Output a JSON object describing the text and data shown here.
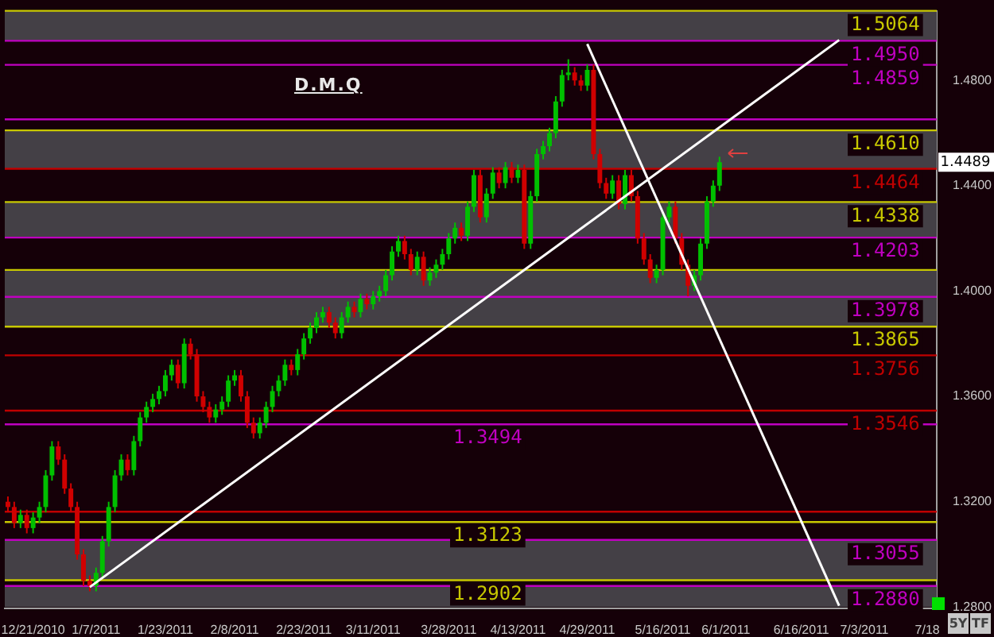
{
  "chart_data": {
    "type": "candlestick",
    "title": "D.M.Q",
    "categories": [
      null,
      null,
      null,
      null,
      "12/21/2010",
      null,
      null,
      null,
      null,
      null,
      null,
      null,
      null,
      null,
      "1/7/2011",
      null,
      null,
      null,
      null,
      null,
      null,
      null,
      null,
      null,
      null,
      "1/23/2011",
      null,
      null,
      null,
      null,
      null,
      null,
      null,
      null,
      null,
      null,
      "2/8/2011",
      null,
      null,
      null,
      null,
      null,
      null,
      null,
      null,
      null,
      null,
      "2/23/2011",
      null,
      null,
      null,
      null,
      null,
      null,
      null,
      null,
      null,
      null,
      "3/11/2011",
      null,
      null,
      null,
      null,
      null,
      null,
      null,
      null,
      null,
      null,
      null,
      "3/28/2011",
      null,
      null,
      null,
      null,
      null,
      null,
      null,
      null,
      null,
      null,
      "4/13/2011",
      null,
      null,
      null,
      null,
      null,
      null,
      null,
      null,
      null,
      null,
      "4/29/2011",
      null,
      null,
      null,
      null,
      null,
      null,
      null,
      null,
      null,
      null,
      null,
      "5/16/2011",
      null,
      null,
      null,
      null,
      null,
      null,
      null,
      null,
      null,
      "6/1/2011",
      null,
      null,
      null,
      null,
      null,
      null,
      null,
      null,
      null,
      null,
      null,
      "6/16/2011",
      null,
      null,
      null,
      null,
      null,
      null,
      null,
      null,
      null,
      "7/3/2011",
      null,
      null,
      null,
      null,
      null,
      null,
      null,
      null,
      null,
      "7/18",
      null
    ],
    "ohlc": [
      [
        1.32,
        1.322,
        1.316,
        1.318
      ],
      [
        1.318,
        1.32,
        1.31,
        1.312
      ],
      [
        1.312,
        1.317,
        1.31,
        1.315
      ],
      [
        1.315,
        1.317,
        1.308,
        1.31
      ],
      [
        1.31,
        1.316,
        1.308,
        1.314
      ],
      [
        1.314,
        1.32,
        1.312,
        1.318
      ],
      [
        1.318,
        1.332,
        1.316,
        1.33
      ],
      [
        1.33,
        1.343,
        1.328,
        1.341
      ],
      [
        1.341,
        1.343,
        1.334,
        1.336
      ],
      [
        1.336,
        1.338,
        1.323,
        1.325
      ],
      [
        1.325,
        1.327,
        1.316,
        1.318
      ],
      [
        1.318,
        1.32,
        1.298,
        1.3
      ],
      [
        1.3,
        1.302,
        1.288,
        1.29
      ],
      [
        1.29,
        1.292,
        1.286,
        1.288
      ],
      [
        1.288,
        1.295,
        1.286,
        1.293
      ],
      [
        1.293,
        1.307,
        1.291,
        1.305
      ],
      [
        1.305,
        1.32,
        1.303,
        1.318
      ],
      [
        1.318,
        1.332,
        1.316,
        1.33
      ],
      [
        1.33,
        1.338,
        1.328,
        1.336
      ],
      [
        1.336,
        1.338,
        1.33,
        1.332
      ],
      [
        1.332,
        1.345,
        1.33,
        1.343
      ],
      [
        1.343,
        1.354,
        1.341,
        1.352
      ],
      [
        1.352,
        1.358,
        1.35,
        1.356
      ],
      [
        1.356,
        1.361,
        1.354,
        1.359
      ],
      [
        1.359,
        1.364,
        1.357,
        1.362
      ],
      [
        1.362,
        1.37,
        1.36,
        1.368
      ],
      [
        1.368,
        1.374,
        1.366,
        1.372
      ],
      [
        1.372,
        1.374,
        1.363,
        1.365
      ],
      [
        1.365,
        1.382,
        1.363,
        1.38
      ],
      [
        1.38,
        1.382,
        1.374,
        1.376
      ],
      [
        1.376,
        1.378,
        1.358,
        1.36
      ],
      [
        1.36,
        1.362,
        1.354,
        1.356
      ],
      [
        1.356,
        1.358,
        1.35,
        1.352
      ],
      [
        1.352,
        1.357,
        1.35,
        1.355
      ],
      [
        1.355,
        1.36,
        1.353,
        1.358
      ],
      [
        1.358,
        1.368,
        1.356,
        1.366
      ],
      [
        1.366,
        1.37,
        1.364,
        1.368
      ],
      [
        1.368,
        1.37,
        1.358,
        1.36
      ],
      [
        1.36,
        1.362,
        1.348,
        1.35
      ],
      [
        1.35,
        1.352,
        1.344,
        1.346
      ],
      [
        1.346,
        1.352,
        1.344,
        1.35
      ],
      [
        1.35,
        1.358,
        1.348,
        1.356
      ],
      [
        1.356,
        1.364,
        1.354,
        1.362
      ],
      [
        1.362,
        1.368,
        1.36,
        1.366
      ],
      [
        1.366,
        1.374,
        1.364,
        1.372
      ],
      [
        1.372,
        1.374,
        1.368,
        1.37
      ],
      [
        1.37,
        1.378,
        1.368,
        1.376
      ],
      [
        1.376,
        1.384,
        1.374,
        1.382
      ],
      [
        1.382,
        1.388,
        1.38,
        1.386
      ],
      [
        1.386,
        1.392,
        1.384,
        1.39
      ],
      [
        1.39,
        1.394,
        1.388,
        1.392
      ],
      [
        1.392,
        1.394,
        1.386,
        1.388
      ],
      [
        1.388,
        1.39,
        1.382,
        1.384
      ],
      [
        1.384,
        1.392,
        1.382,
        1.39
      ],
      [
        1.39,
        1.396,
        1.388,
        1.394
      ],
      [
        1.394,
        1.396,
        1.39,
        1.392
      ],
      [
        1.392,
        1.399,
        1.39,
        1.397
      ],
      [
        1.397,
        1.399,
        1.393,
        1.395
      ],
      [
        1.395,
        1.4,
        1.393,
        1.398
      ],
      [
        1.398,
        1.402,
        1.396,
        1.4
      ],
      [
        1.4,
        1.408,
        1.398,
        1.406
      ],
      [
        1.406,
        1.417,
        1.404,
        1.415
      ],
      [
        1.415,
        1.421,
        1.413,
        1.419
      ],
      [
        1.419,
        1.421,
        1.412,
        1.414
      ],
      [
        1.414,
        1.416,
        1.406,
        1.408
      ],
      [
        1.408,
        1.415,
        1.406,
        1.413
      ],
      [
        1.413,
        1.415,
        1.402,
        1.404
      ],
      [
        1.404,
        1.409,
        1.402,
        1.407
      ],
      [
        1.407,
        1.412,
        1.405,
        1.41
      ],
      [
        1.41,
        1.416,
        1.408,
        1.414
      ],
      [
        1.414,
        1.422,
        1.412,
        1.42
      ],
      [
        1.42,
        1.426,
        1.418,
        1.424
      ],
      [
        1.424,
        1.426,
        1.419,
        1.421
      ],
      [
        1.421,
        1.434,
        1.419,
        1.432
      ],
      [
        1.432,
        1.446,
        1.43,
        1.444
      ],
      [
        1.444,
        1.446,
        1.426,
        1.428
      ],
      [
        1.428,
        1.439,
        1.426,
        1.437
      ],
      [
        1.437,
        1.447,
        1.435,
        1.445
      ],
      [
        1.445,
        1.447,
        1.439,
        1.441
      ],
      [
        1.441,
        1.449,
        1.439,
        1.447
      ],
      [
        1.447,
        1.449,
        1.441,
        1.443
      ],
      [
        1.443,
        1.448,
        1.441,
        1.446
      ],
      [
        1.446,
        1.448,
        1.416,
        1.418
      ],
      [
        1.418,
        1.438,
        1.416,
        1.436
      ],
      [
        1.436,
        1.454,
        1.434,
        1.452
      ],
      [
        1.452,
        1.457,
        1.45,
        1.455
      ],
      [
        1.455,
        1.462,
        1.453,
        1.46
      ],
      [
        1.46,
        1.474,
        1.458,
        1.472
      ],
      [
        1.472,
        1.484,
        1.47,
        1.482
      ],
      [
        1.482,
        1.488,
        1.48,
        1.483
      ],
      [
        1.483,
        1.485,
        1.478,
        1.48
      ],
      [
        1.48,
        1.482,
        1.476,
        1.478
      ],
      [
        1.478,
        1.486,
        1.476,
        1.484
      ],
      [
        1.484,
        1.486,
        1.45,
        1.452
      ],
      [
        1.452,
        1.454,
        1.439,
        1.441
      ],
      [
        1.441,
        1.443,
        1.435,
        1.437
      ],
      [
        1.437,
        1.444,
        1.435,
        1.442
      ],
      [
        1.442,
        1.444,
        1.431,
        1.433
      ],
      [
        1.433,
        1.446,
        1.431,
        1.444
      ],
      [
        1.444,
        1.446,
        1.434,
        1.436
      ],
      [
        1.436,
        1.438,
        1.418,
        1.42
      ],
      [
        1.42,
        1.422,
        1.41,
        1.412
      ],
      [
        1.412,
        1.414,
        1.403,
        1.405
      ],
      [
        1.405,
        1.41,
        1.403,
        1.408
      ],
      [
        1.408,
        1.43,
        1.406,
        1.428
      ],
      [
        1.428,
        1.434,
        1.426,
        1.432
      ],
      [
        1.432,
        1.434,
        1.418,
        1.42
      ],
      [
        1.42,
        1.422,
        1.408,
        1.41
      ],
      [
        1.41,
        1.412,
        1.398,
        1.402
      ],
      [
        1.402,
        1.408,
        1.4,
        1.406
      ],
      [
        1.406,
        1.42,
        1.404,
        1.418
      ],
      [
        1.418,
        1.436,
        1.416,
        1.434
      ],
      [
        1.434,
        1.442,
        1.432,
        1.44
      ],
      [
        1.44,
        1.451,
        1.438,
        1.4489
      ],
      null,
      null,
      null,
      null,
      null,
      null,
      null,
      null,
      null,
      null,
      null,
      null,
      null,
      null,
      null,
      null,
      null,
      null,
      null,
      null,
      null,
      null,
      null,
      null,
      null,
      null,
      null,
      null,
      null,
      null,
      null,
      null,
      null,
      null
    ],
    "colors": [
      "#d00000",
      "#d00000",
      "#00c000",
      "#d00000",
      "#00c000",
      "#00c000",
      "#00c000",
      "#00c000",
      "#d00000",
      "#d00000",
      "#d00000",
      "#d00000",
      "#d00000",
      "#d00000",
      "#00c000",
      "#00c000",
      "#00c000",
      "#00c000",
      "#00c000",
      "#d00000",
      "#00c000",
      "#00c000",
      "#00c000",
      "#00c000",
      "#00c000",
      "#00c000",
      "#00c000",
      "#d00000",
      "#00c000",
      "#d00000",
      "#d00000",
      "#d00000",
      "#d00000",
      "#00c000",
      "#00c000",
      "#00c000",
      "#00c000",
      "#d00000",
      "#d00000",
      "#d00000",
      "#00c000",
      "#00c000",
      "#00c000",
      "#00c000",
      "#00c000",
      "#d00000",
      "#00c000",
      "#00c000",
      "#00c000",
      "#00c000",
      "#00c000",
      "#d00000",
      "#d00000",
      "#00c000",
      "#00c000",
      "#d00000",
      "#00c000",
      "#d00000",
      "#00c000",
      "#00c000",
      "#00c000",
      "#00c000",
      "#00c000",
      "#d00000",
      "#d00000",
      "#00c000",
      "#d00000",
      "#00c000",
      "#00c000",
      "#00c000",
      "#00c000",
      "#00c000",
      "#d00000",
      "#00c000",
      "#00c000",
      "#d00000",
      "#00c000",
      "#00c000",
      "#d00000",
      "#00c000",
      "#d00000",
      "#00c000",
      "#d00000",
      "#00c000",
      "#00c000",
      "#00c000",
      "#00c000",
      "#00c000",
      "#00c000",
      "#00c000",
      "#d00000",
      "#d00000",
      "#00c000",
      "#d00000",
      "#d00000",
      "#d00000",
      "#00c000",
      "#d00000",
      "#00c000",
      "#d00000",
      "#d00000",
      "#d00000",
      "#d00000",
      "#00c000",
      "#00c000",
      "#00c000",
      "#d00000",
      "#d00000",
      "#d00000",
      "#00c000",
      "#00c000",
      "#00c000",
      "#00c000",
      "#00c000",
      null,
      null,
      null,
      null,
      null,
      null,
      null,
      null,
      null,
      null,
      null,
      null,
      null,
      null,
      null,
      null,
      null,
      null,
      null,
      null,
      null,
      null,
      null,
      null,
      null,
      null,
      null,
      null,
      null,
      null,
      null,
      null,
      null,
      null
    ],
    "series": [
      {
        "type": "line",
        "color": "#ffffff",
        "values": [
          null,
          null,
          null,
          null,
          null,
          null,
          null,
          null,
          null,
          null,
          null,
          null,
          null,
          1.2876,
          null,
          null,
          null,
          null,
          null,
          null,
          null,
          null,
          null,
          null,
          null,
          null,
          null,
          null,
          null,
          null,
          null,
          null,
          null,
          null,
          null,
          null,
          null,
          null,
          null,
          null,
          null,
          null,
          null,
          null,
          null,
          null,
          null,
          null,
          null,
          null,
          null,
          null,
          null,
          null,
          null,
          null,
          null,
          null,
          null,
          null,
          null,
          null,
          null,
          null,
          null,
          null,
          null,
          null,
          null,
          null,
          null,
          null,
          null,
          null,
          null,
          null,
          null,
          null,
          null,
          null,
          null,
          null,
          null,
          null,
          null,
          null,
          null,
          null,
          null,
          null,
          null,
          null,
          null,
          null,
          null,
          null,
          null,
          null,
          null,
          null,
          null,
          null,
          null,
          null,
          null,
          null,
          null,
          null,
          null,
          null,
          null,
          null,
          null,
          null,
          null,
          null,
          null,
          null,
          null,
          null,
          null,
          null,
          null,
          null,
          null,
          null,
          null,
          null,
          null,
          null,
          null,
          null,
          1.4953,
          null,
          null,
          null,
          null,
          null,
          null,
          null,
          null,
          null,
          null,
          null,
          null,
          null,
          null,
          null
        ]
      },
      {
        "type": "line",
        "color": "#ffffff",
        "values": [
          null,
          null,
          null,
          null,
          null,
          null,
          null,
          null,
          null,
          null,
          null,
          null,
          null,
          null,
          null,
          null,
          null,
          null,
          null,
          null,
          null,
          null,
          null,
          null,
          null,
          null,
          null,
          null,
          null,
          null,
          null,
          null,
          null,
          null,
          null,
          null,
          null,
          null,
          null,
          null,
          null,
          null,
          null,
          null,
          null,
          null,
          null,
          null,
          null,
          null,
          null,
          null,
          null,
          null,
          null,
          null,
          null,
          null,
          null,
          null,
          null,
          null,
          null,
          null,
          null,
          null,
          null,
          null,
          null,
          null,
          null,
          null,
          null,
          null,
          null,
          null,
          null,
          null,
          null,
          null,
          null,
          null,
          null,
          null,
          null,
          null,
          null,
          null,
          null,
          null,
          null,
          null,
          1.4938,
          null,
          null,
          null,
          null,
          null,
          null,
          null,
          null,
          null,
          null,
          null,
          null,
          null,
          null,
          null,
          null,
          null,
          null,
          null,
          null,
          null,
          null,
          null,
          null,
          null,
          null,
          null,
          null,
          null,
          null,
          null,
          null,
          null,
          null,
          null,
          null,
          null,
          null,
          null,
          1.2805,
          null,
          null,
          null,
          null,
          null,
          null,
          null,
          null,
          null,
          null,
          null,
          null,
          null,
          null,
          null
        ]
      }
    ],
    "ylim": [
      1.2795,
      1.5064
    ],
    "yticks": [
      {
        "value": 1.28,
        "label": "1.2800"
      },
      {
        "value": 1.32,
        "label": "1.3200"
      },
      {
        "value": 1.36,
        "label": "1.3600"
      },
      {
        "value": 1.4,
        "label": "1.4000"
      },
      {
        "value": 1.44,
        "label": "1.4400"
      },
      {
        "value": 1.48,
        "label": "1.4800"
      }
    ],
    "bands": [
      {
        "axis": "y",
        "from": 1.495,
        "to": 1.5064,
        "color": "#444046"
      },
      {
        "axis": "y",
        "from": 1.4464,
        "to": 1.461,
        "color": "#444046"
      },
      {
        "axis": "y",
        "from": 1.4203,
        "to": 1.4338,
        "color": "#444046"
      },
      {
        "axis": "y",
        "from": 1.3865,
        "to": 1.3978,
        "color": "#444046"
      },
      {
        "axis": "y",
        "from": 1.2902,
        "to": 1.3055,
        "color": "#444046"
      },
      {
        "axis": "y",
        "from": 1.28,
        "to": 1.288,
        "color": "#444046"
      },
      {
        "axis": "y",
        "from": 1.3904,
        "to": 1.408,
        "color": "#444046"
      }
    ],
    "ref_lines": [
      {
        "axis": "y",
        "value": 1.5064,
        "label": "1.5064",
        "color": "#c8c800"
      },
      {
        "axis": "y",
        "value": 1.461,
        "label": "1.4610",
        "color": "#c8c800"
      },
      {
        "axis": "y",
        "value": 1.4338,
        "label": "1.4338",
        "color": "#c8c800"
      },
      {
        "axis": "y",
        "value": 1.3978,
        "label": "1.3978",
        "color": "#c000c0"
      },
      {
        "axis": "y",
        "value": 1.3055,
        "label": "1.3055",
        "color": "#c000c0"
      },
      {
        "axis": "y",
        "value": 1.288,
        "label": "1.2880",
        "color": "#c000c0"
      },
      {
        "axis": "y",
        "value": 1.408,
        "color": "#c8c800"
      },
      {
        "axis": "y",
        "value": 1.495,
        "label": "1.4950",
        "color": "#c000c0"
      },
      {
        "axis": "y",
        "value": 1.4859,
        "label": "1.4859",
        "color": "#c000c0"
      },
      {
        "axis": "y",
        "value": 1.4652,
        "color": "#c000c0"
      },
      {
        "axis": "y",
        "value": 1.4464,
        "label": "1.4464",
        "color": "#c00000"
      },
      {
        "axis": "y",
        "value": 1.4203,
        "label": "1.4203",
        "color": "#c000c0"
      },
      {
        "axis": "y",
        "value": 1.3865,
        "label": "1.3865",
        "color": "#c8c800"
      },
      {
        "axis": "y",
        "value": 1.3756,
        "label": "1.3756",
        "color": "#c00000"
      },
      {
        "axis": "y",
        "value": 1.3546,
        "label": "1.3546",
        "color": "#c00000"
      },
      {
        "axis": "y",
        "value": 1.3494,
        "label": "1.3494",
        "color": "#c000c0"
      },
      {
        "axis": "y",
        "value": 1.3162,
        "color": "#c00000"
      },
      {
        "axis": "y",
        "value": 1.3123,
        "label": "1.3123",
        "color": "#c8c800"
      },
      {
        "axis": "y",
        "value": 1.2902,
        "label": "1.2902",
        "color": "#c8c800"
      }
    ],
    "annotations": [
      {
        "text": "1.4489",
        "y": 1.4489
      },
      "5Y",
      "TF"
    ]
  }
}
